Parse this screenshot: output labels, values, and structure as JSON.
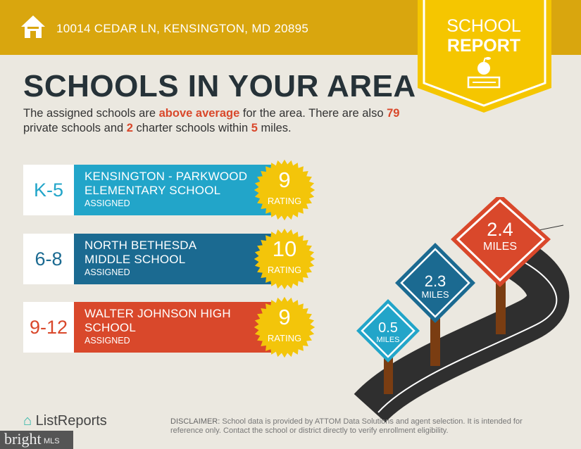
{
  "header": {
    "address": "10014 CEDAR LN, KENSINGTON, MD 20895",
    "icon": "house-icon"
  },
  "badge": {
    "line1": "SCHOOL",
    "line2": "REPORT",
    "icon": "apple-books-icon"
  },
  "title": "SCHOOLS IN YOUR AREA",
  "intro": {
    "p1": "The assigned schools are ",
    "hl1": "above average",
    "p2": " for the area. There are also ",
    "hl2": "79",
    "p3": " private schools and ",
    "hl3": "2",
    "p4": " charter schools within ",
    "hl4": "5",
    "p5": " miles."
  },
  "schools": [
    {
      "grade": "K-5",
      "name1": "KENSINGTON - PARKWOOD",
      "name2": "ELEMENTARY SCHOOL",
      "status": "ASSIGNED",
      "rating": "9",
      "rating_label": "RATING",
      "color": "#22a5c9"
    },
    {
      "grade": "6-8",
      "name1": "NORTH BETHESDA",
      "name2": "MIDDLE SCHOOL",
      "status": "ASSIGNED",
      "rating": "10",
      "rating_label": "RATING",
      "color": "#1b6a91"
    },
    {
      "grade": "9-12",
      "name1": "WALTER JOHNSON HIGH",
      "name2": "SCHOOL",
      "status": "ASSIGNED",
      "rating": "9",
      "rating_label": "RATING",
      "color": "#d9482b"
    }
  ],
  "distances": [
    {
      "value": "0.5",
      "unit": "MILES",
      "color": "#22a5c9"
    },
    {
      "value": "2.3",
      "unit": "MILES",
      "color": "#1b6a91"
    },
    {
      "value": "2.4",
      "unit": "MILES",
      "color": "#d9482b"
    }
  ],
  "footer": {
    "logo": "ListReports",
    "disclaimer_label": "DISCLAIMER:",
    "disclaimer": " School data is provided by ATTOM Data Solutions and agent selection. It is intended for reference only. Contact the school or district directly to verify enrollment eligibility.",
    "mls_logo": "bright MLS"
  }
}
